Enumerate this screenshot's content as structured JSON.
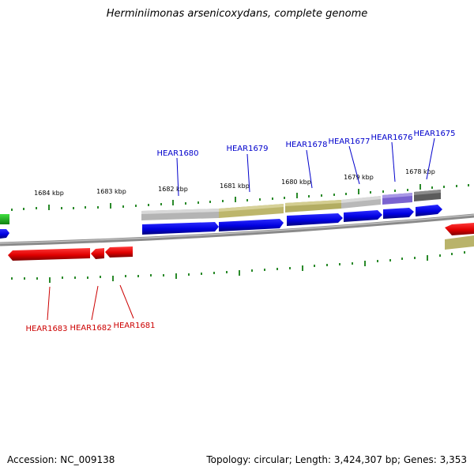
{
  "title": "Herminiimonas arsenicoxydans, complete genome",
  "footer": {
    "accession": "Accession: NC_009138",
    "summary": "Topology: circular; Length: 3,424,307 bp; Genes: 3,353"
  },
  "scale_labels": [
    "1684 kbp",
    "1683 kbp",
    "1682 kbp",
    "1681 kbp",
    "1680 kbp",
    "1679 kbp",
    "1678 kbp"
  ],
  "forward_genes": [
    "HEAR1680",
    "HEAR1679",
    "HEAR1678",
    "HEAR1677",
    "HEAR1676",
    "HEAR1675"
  ],
  "reverse_genes": [
    "HEAR1683",
    "HEAR1682",
    "HEAR1681"
  ],
  "colors": {
    "forward_label": "#0000cc",
    "reverse_label": "#cc0000",
    "forward_gene": "#0000e0",
    "reverse_gene": "#e00000",
    "tick": "#2a8a2a",
    "backbone": "#808080"
  }
}
